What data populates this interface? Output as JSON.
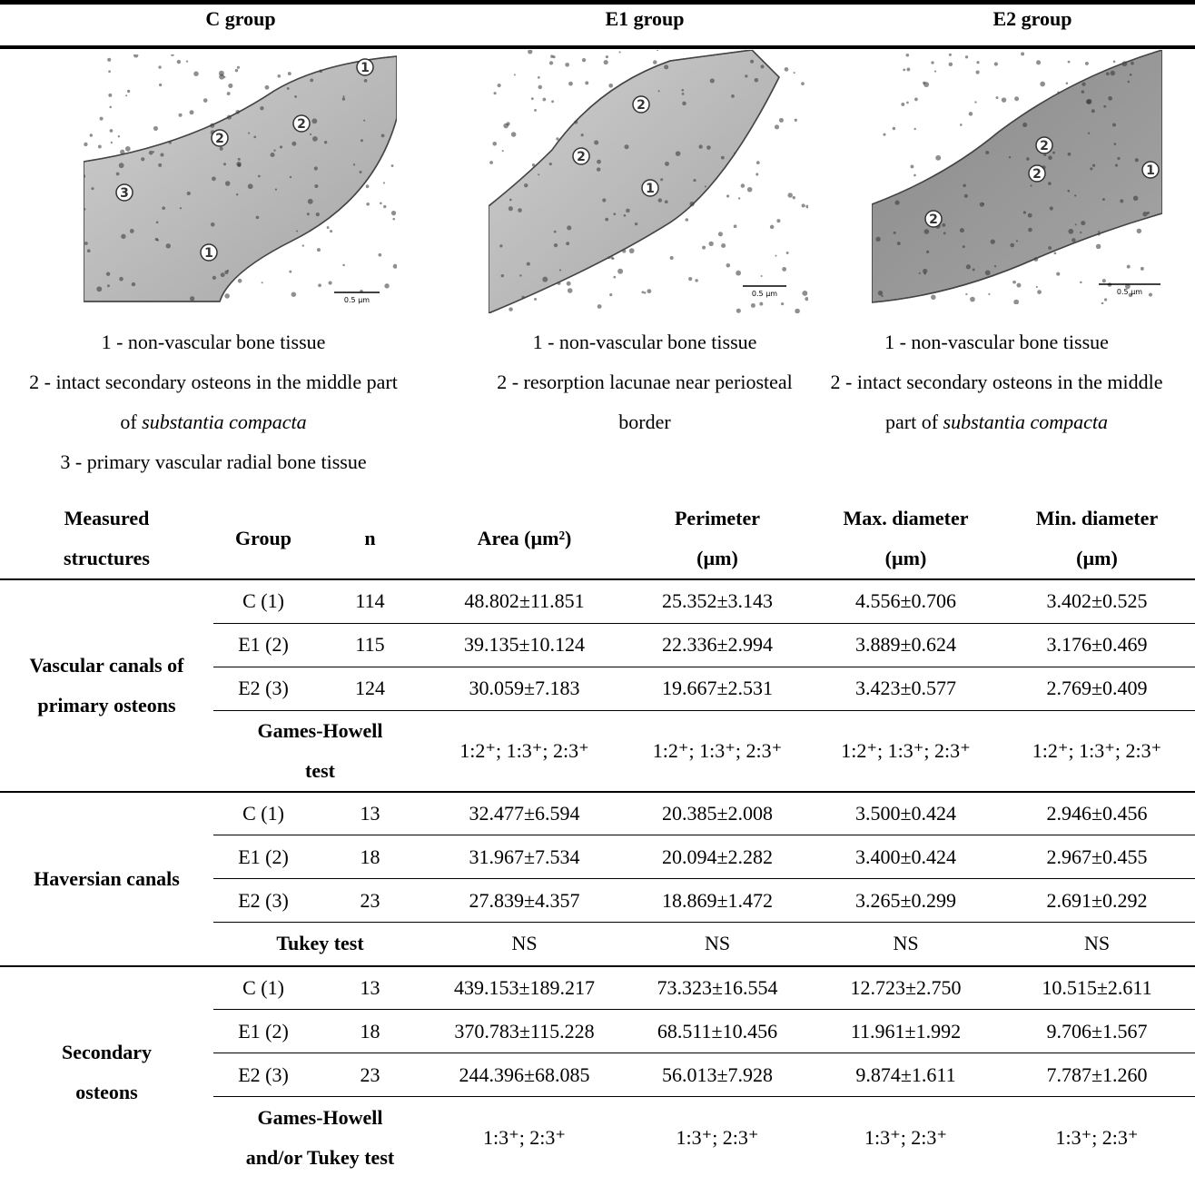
{
  "header": {
    "columns": [
      "C group",
      "E1 group",
      "E2 group"
    ]
  },
  "panels": [
    {
      "scale_bar": "0.5 µm",
      "markers": [
        "1",
        "2",
        "2",
        "3",
        "1"
      ],
      "legend": [
        {
          "text": "1 - non-vascular bone tissue"
        },
        {
          "text": "2 - intact secondary osteons in the middle part of ",
          "emphasis": "substantia compacta"
        },
        {
          "text": "3 - primary vascular radial bone tissue"
        }
      ]
    },
    {
      "scale_bar": "0.5 µm",
      "markers": [
        "2",
        "2",
        "1"
      ],
      "legend": [
        {
          "text": "1 - non-vascular bone tissue"
        },
        {
          "text": "2 - resorption lacunae near periosteal border"
        }
      ]
    },
    {
      "scale_bar": "0.5 µm",
      "markers": [
        "2",
        "2",
        "1",
        "2"
      ],
      "legend": [
        {
          "text": "1 - non-vascular bone tissue"
        },
        {
          "text": "2 - intact secondary osteons in the middle part of ",
          "emphasis": "substantia compacta"
        }
      ]
    }
  ],
  "table": {
    "header": [
      "Measured structures",
      "Group",
      "n",
      "Area (µm²)",
      "Perimeter (µm)",
      "Max. diameter (µm)",
      "Min. diameter (µm)"
    ],
    "sections": [
      {
        "structure": "Vascular canals of primary osteons",
        "rows": [
          [
            "C (1)",
            114,
            "48.802±11.851",
            "25.352±3.143",
            "4.556±0.706",
            "3.402±0.525"
          ],
          [
            "E1 (2)",
            115,
            "39.135±10.124",
            "22.336±2.994",
            "3.889±0.624",
            "3.176±0.469"
          ],
          [
            "E2 (3)",
            124,
            "30.059±7.183",
            "19.667±2.531",
            "3.423±0.577",
            "2.769±0.409"
          ]
        ],
        "test": "Games-Howell test",
        "test_results": [
          "1:2⁺; 1:3⁺; 2:3⁺",
          "1:2⁺; 1:3⁺; 2:3⁺",
          "1:2⁺; 1:3⁺; 2:3⁺",
          "1:2⁺; 1:3⁺; 2:3⁺"
        ]
      },
      {
        "structure": "Haversian canals",
        "rows": [
          [
            "C (1)",
            13,
            "32.477±6.594",
            "20.385±2.008",
            "3.500±0.424",
            "2.946±0.456"
          ],
          [
            "E1 (2)",
            18,
            "31.967±7.534",
            "20.094±2.282",
            "3.400±0.424",
            "2.967±0.455"
          ],
          [
            "E2 (3)",
            23,
            "27.839±4.357",
            "18.869±1.472",
            "3.265±0.299",
            "2.691±0.292"
          ]
        ],
        "test": "Tukey test",
        "test_results": [
          "NS",
          "NS",
          "NS",
          "NS"
        ]
      },
      {
        "structure": "Secondary osteons",
        "rows": [
          [
            "C (1)",
            13,
            "439.153±189.217",
            "73.323±16.554",
            "12.723±2.750",
            "10.515±2.611"
          ],
          [
            "E1 (2)",
            18,
            "370.783±115.228",
            "68.511±10.456",
            "11.961±1.992",
            "9.706±1.567"
          ],
          [
            "E2 (3)",
            23,
            "244.396±68.085",
            "56.013±7.928",
            "9.874±1.611",
            "7.787±1.260"
          ]
        ],
        "test": "Games-Howell and/or Tukey test",
        "test_results": [
          "1:3⁺; 2:3⁺",
          "1:3⁺; 2:3⁺",
          "1:3⁺; 2:3⁺",
          "1:3⁺; 2:3⁺"
        ]
      }
    ]
  }
}
